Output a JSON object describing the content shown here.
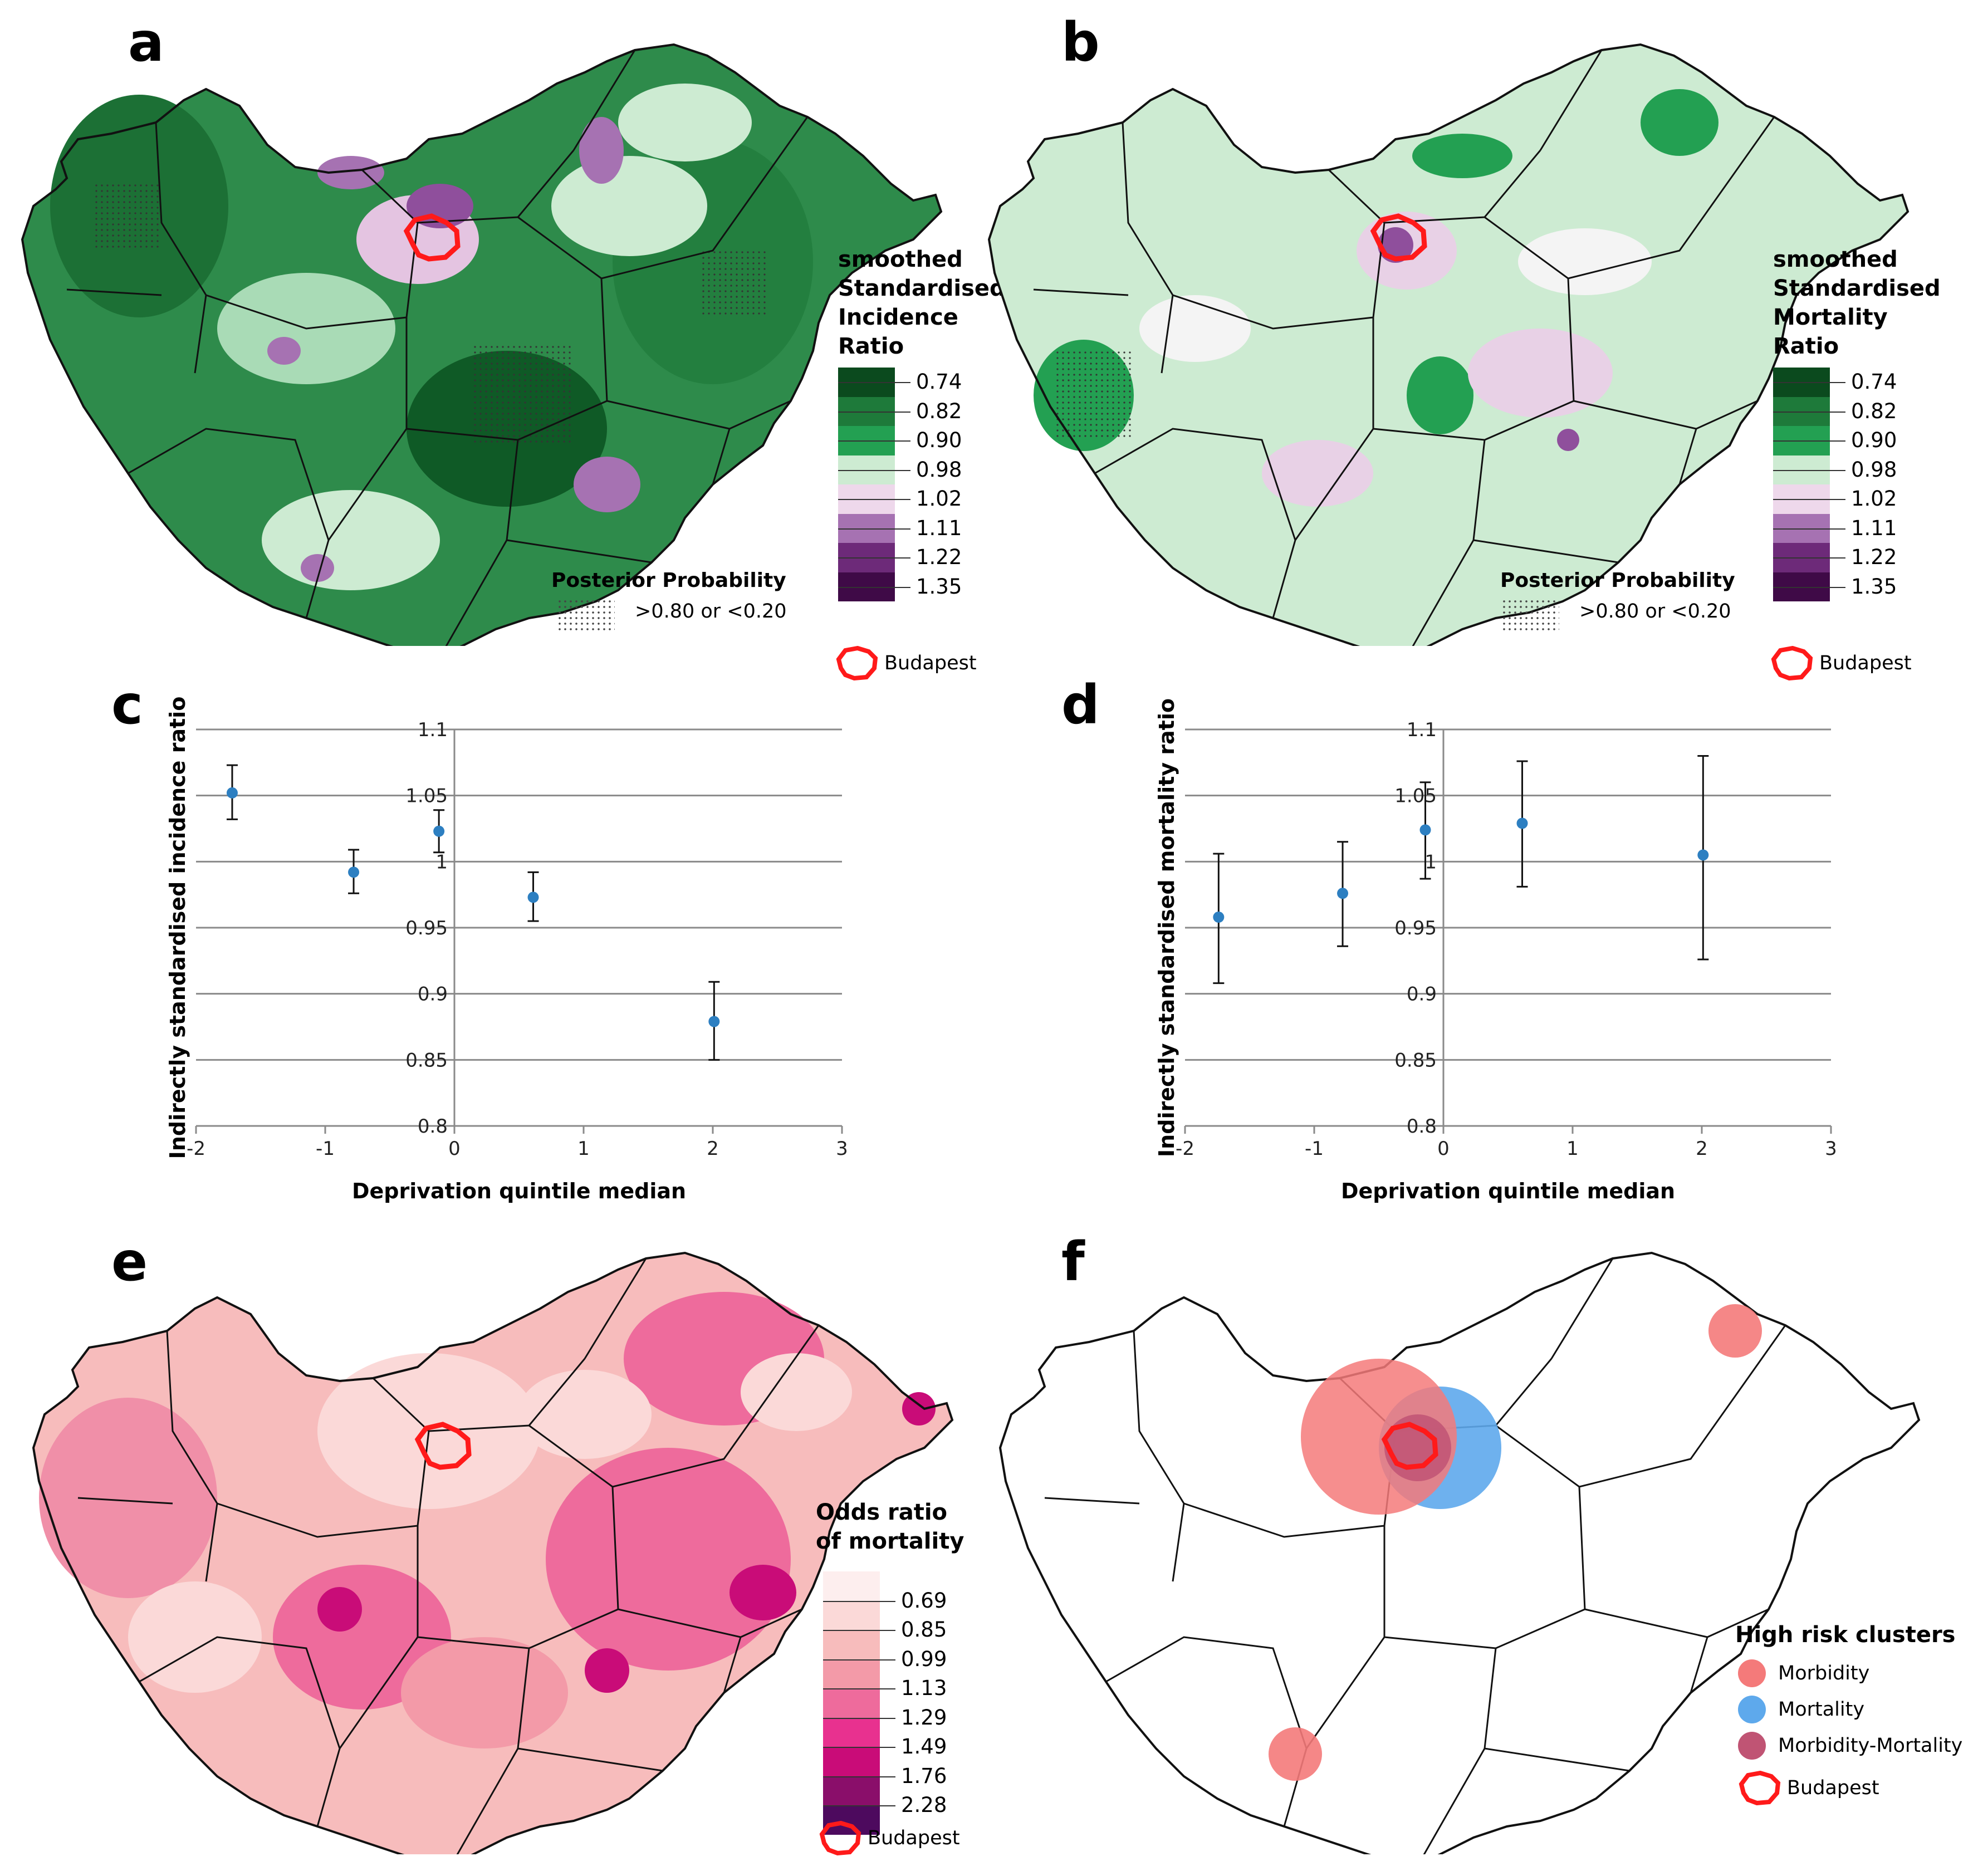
{
  "panels": {
    "a": {
      "label": "a",
      "legend_title": [
        "smoothed",
        "Standardised",
        "Incidence",
        "Ratio"
      ],
      "legend_values": [
        "0.74",
        "0.82",
        "0.90",
        "0.98",
        "1.02",
        "1.11",
        "1.22",
        "1.35"
      ],
      "legend_colors": [
        "#0b4a1e",
        "#1e7a3a",
        "#23a052",
        "#cdebd2",
        "#eed8eb",
        "#a672b2",
        "#6d2a79",
        "#3f0a47"
      ],
      "posterior_title": "Posterior Probability",
      "posterior_label": ">0.80 or <0.20",
      "budapest_label": "Budapest"
    },
    "b": {
      "label": "b",
      "legend_title": [
        "smoothed",
        "Standardised",
        "Mortality",
        "Ratio"
      ],
      "legend_values": [
        "0.74",
        "0.82",
        "0.90",
        "0.98",
        "1.02",
        "1.11",
        "1.22",
        "1.35"
      ],
      "legend_colors": [
        "#0b4a1e",
        "#1e7a3a",
        "#23a052",
        "#cdebd2",
        "#eed8eb",
        "#a672b2",
        "#6d2a79",
        "#3f0a47"
      ],
      "posterior_title": "Posterior Probability",
      "posterior_label": ">0.80 or <0.20",
      "budapest_label": "Budapest"
    },
    "c": {
      "label": "c"
    },
    "d": {
      "label": "d"
    },
    "e": {
      "label": "e",
      "legend_title": [
        "Odds ratio",
        "of mortality"
      ],
      "legend_values": [
        "0.69",
        "0.85",
        "0.99",
        "1.13",
        "1.29",
        "1.49",
        "1.76",
        "2.28"
      ],
      "legend_colors": [
        "#fdeeee",
        "#fbd9d8",
        "#f7bcbc",
        "#f39aa8",
        "#ee6b9c",
        "#e8318f",
        "#c90c78",
        "#8a0e6a",
        "#4d0a5e"
      ],
      "budapest_label": "Budapest"
    },
    "f": {
      "label": "f",
      "legend_title": "High risk clusters",
      "items": [
        {
          "label": "Morbidity",
          "color": "#f47a7a"
        },
        {
          "label": "Mortality",
          "color": "#5ea9ec"
        },
        {
          "label": "Morbidity-Mortality",
          "color": "#c05474"
        }
      ],
      "budapest_label": "Budapest"
    }
  },
  "chart_data": [
    {
      "id": "c",
      "type": "scatter",
      "title": "",
      "xlabel": "Deprivation quintile median",
      "ylabel": "Indirectly standardised incidence ratio",
      "xlim": [
        -2,
        3
      ],
      "ylim": [
        0.8,
        1.1
      ],
      "x_ticks": [
        "-2",
        "-1",
        "0",
        "1",
        "2",
        "3"
      ],
      "y_ticks": [
        "0.8",
        "0.85",
        "0.9",
        "0.95",
        "1",
        "1.05",
        "1.1"
      ],
      "grid": true,
      "points": [
        {
          "x": -1.72,
          "y": 1.052,
          "lo": 1.032,
          "hi": 1.073
        },
        {
          "x": -0.78,
          "y": 0.992,
          "lo": 0.976,
          "hi": 1.009
        },
        {
          "x": -0.12,
          "y": 1.023,
          "lo": 1.007,
          "hi": 1.039
        },
        {
          "x": 0.61,
          "y": 0.973,
          "lo": 0.955,
          "hi": 0.992
        },
        {
          "x": 2.01,
          "y": 0.879,
          "lo": 0.85,
          "hi": 0.909
        }
      ]
    },
    {
      "id": "d",
      "type": "scatter",
      "title": "",
      "xlabel": "Deprivation quintile median",
      "ylabel": "Indirectly standardised mortality ratio",
      "xlim": [
        -2,
        3
      ],
      "ylim": [
        0.8,
        1.1
      ],
      "x_ticks": [
        "-2",
        "-1",
        "0",
        "1",
        "2",
        "3"
      ],
      "y_ticks": [
        "0.8",
        "0.85",
        "0.9",
        "0.95",
        "1",
        "1.05",
        "1.1"
      ],
      "grid": true,
      "points": [
        {
          "x": -1.74,
          "y": 0.958,
          "lo": 0.908,
          "hi": 1.006
        },
        {
          "x": -0.78,
          "y": 0.976,
          "lo": 0.936,
          "hi": 1.015
        },
        {
          "x": -0.14,
          "y": 1.024,
          "lo": 0.987,
          "hi": 1.06
        },
        {
          "x": 0.61,
          "y": 1.029,
          "lo": 0.981,
          "hi": 1.076
        },
        {
          "x": 2.01,
          "y": 1.005,
          "lo": 0.926,
          "hi": 1.08
        }
      ]
    }
  ]
}
